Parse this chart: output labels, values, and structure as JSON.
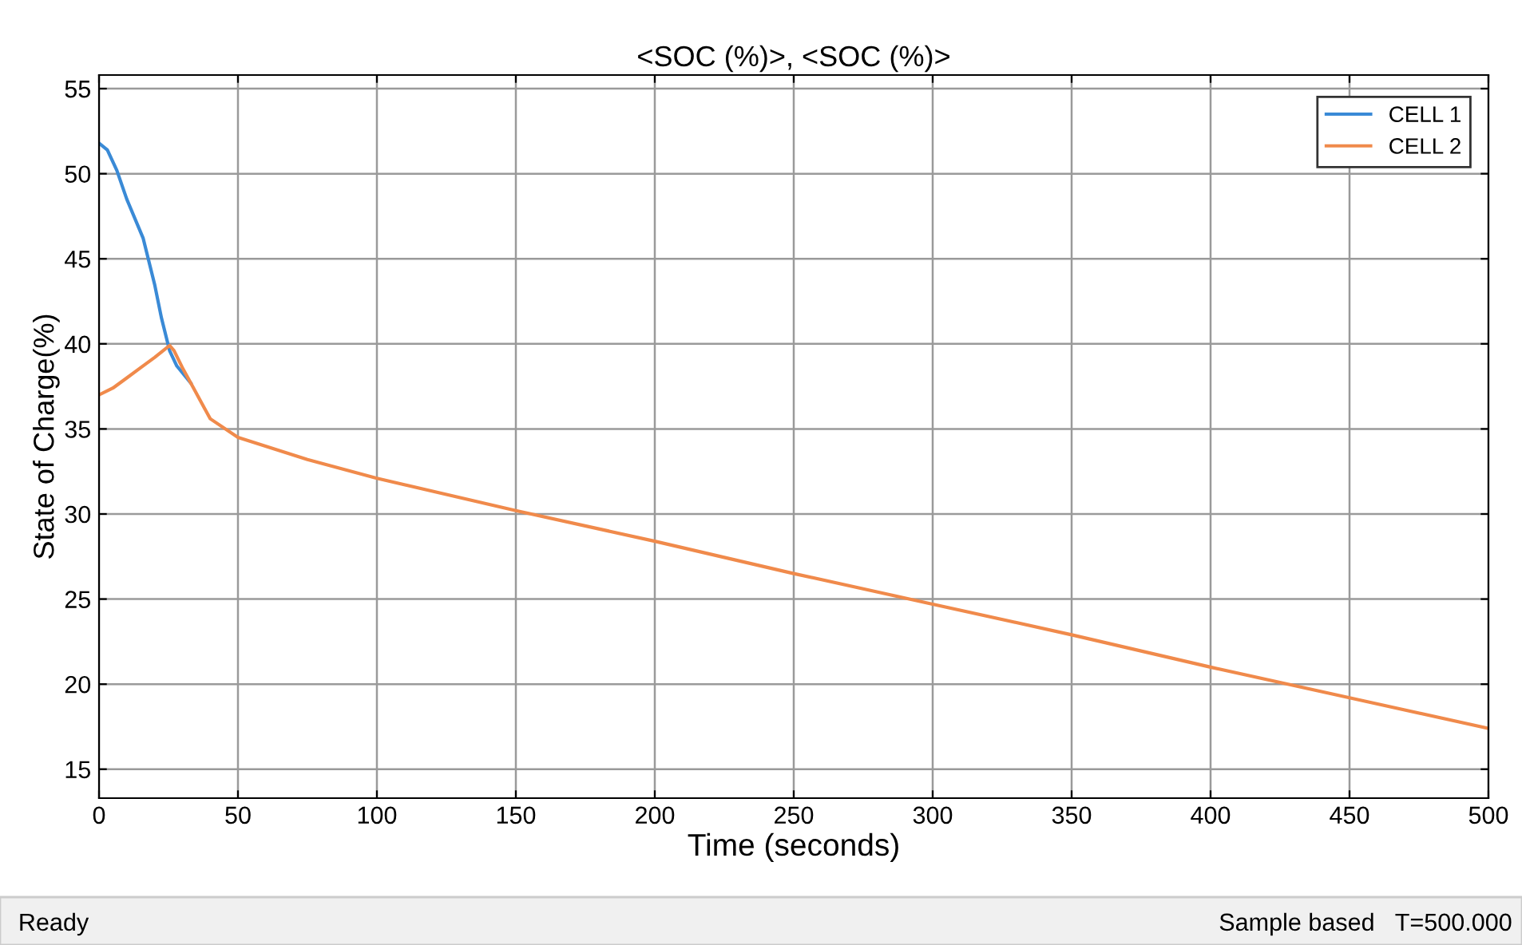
{
  "chart_data": {
    "type": "line",
    "title": "<SOC (%)>, <SOC (%)>",
    "xlabel": "Time (seconds)",
    "ylabel": "State of Charge(%)",
    "xlim": [
      0,
      500
    ],
    "ylim": [
      13.3,
      55.8
    ],
    "xticks": [
      0,
      50,
      100,
      150,
      200,
      250,
      300,
      350,
      400,
      450,
      500
    ],
    "yticks": [
      15,
      20,
      25,
      30,
      35,
      40,
      45,
      50,
      55
    ],
    "grid": true,
    "legend": "top right",
    "line_style": "solid",
    "marker": "none",
    "annotations": [
      "Ready",
      "Sample based",
      "T=500.000"
    ],
    "series": [
      {
        "name": "CELL 1",
        "color": "#3a8ad6",
        "x": [
          0,
          3,
          6.4,
          10,
          15.9,
          20,
          22.5,
          25.4,
          28,
          33
        ],
        "values": [
          51.8,
          51.4,
          50.2,
          48.5,
          46.2,
          43.5,
          41.5,
          39.6,
          38.7,
          37.7
        ]
      },
      {
        "name": "CELL 2",
        "color": "#f08a4b",
        "x": [
          0,
          5,
          10,
          15,
          20,
          25.4,
          27,
          30,
          33,
          40,
          50,
          75,
          100,
          150,
          200,
          250,
          300,
          350,
          400,
          450,
          500
        ],
        "values": [
          37.0,
          37.4,
          38.0,
          38.6,
          39.2,
          39.9,
          39.6,
          38.6,
          37.7,
          35.6,
          34.5,
          33.2,
          32.1,
          30.2,
          28.4,
          26.5,
          24.7,
          22.9,
          21.0,
          19.2,
          17.4
        ]
      }
    ]
  }
}
